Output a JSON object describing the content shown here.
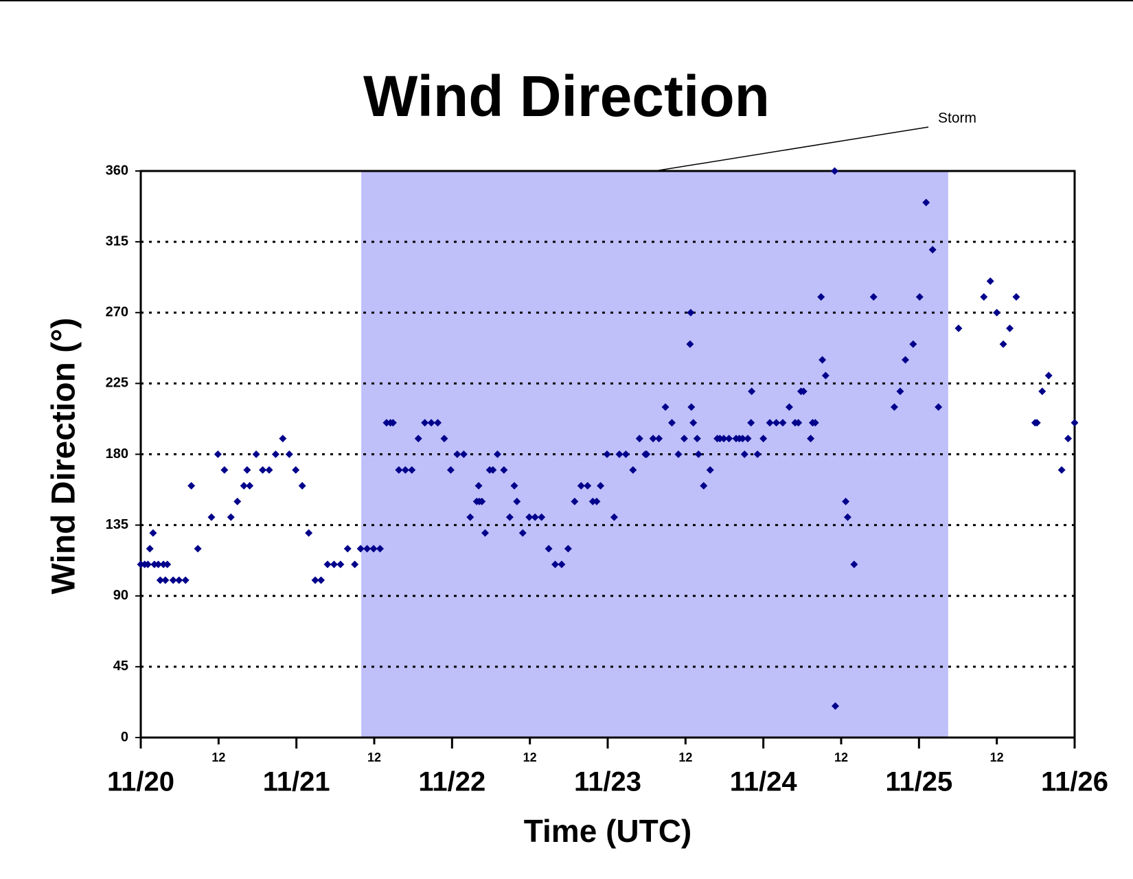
{
  "chart_data": {
    "type": "scatter",
    "title": "Wind Direction",
    "x_label": "Time (UTC)",
    "y_label": "Wind Direction (°)",
    "color": "#00008b",
    "shade_color": "#bfbffa",
    "grid": true,
    "storm": {
      "label": "Storm",
      "x": [
        34,
        124.5
      ]
    },
    "xlim": [
      0,
      144
    ],
    "xticks": [
      {
        "value": 0,
        "label": "11/20"
      },
      12,
      {
        "value": 24,
        "label": "11/21"
      },
      {
        "value": 36,
        "label": "12"
      },
      {
        "value": 48,
        "label": "11/22"
      },
      {
        "value": 60,
        "label": "12"
      },
      {
        "value": 72,
        "label": "11/23"
      },
      {
        "value": 84,
        "label": "12"
      },
      {
        "value": 96,
        "label": "11/24"
      },
      {
        "value": 108,
        "label": "12"
      },
      {
        "value": 120,
        "label": "11/25"
      },
      {
        "value": 132,
        "label": "12"
      },
      {
        "value": 144,
        "label": "11/26"
      }
    ],
    "ylim": [
      0,
      360
    ],
    "yticks": [
      0,
      45,
      90,
      135,
      180,
      225,
      270,
      315,
      360
    ],
    "x": [
      0,
      0.6,
      1.1,
      1.4,
      1.9,
      2.1,
      2.7,
      3.0,
      3.5,
      3.8,
      4.1,
      5.0,
      5.9,
      6.9,
      7.8,
      8.8,
      10.9,
      11.9,
      12.9,
      13.9,
      14.9,
      15.9,
      16.4,
      16.8,
      17.8,
      18.8,
      19.8,
      20.8,
      21.9,
      22.9,
      23.9,
      24.9,
      25.9,
      26.9,
      27.8,
      28.8,
      29.8,
      30.8,
      31.9,
      33.0,
      33.9,
      34.9,
      35.9,
      36.9,
      37.9,
      38.5,
      38.9,
      39.8,
      40.8,
      41.8,
      42.8,
      43.8,
      44.8,
      45.8,
      46.8,
      47.8,
      48.8,
      49.8,
      50.8,
      51.8,
      52.1,
      52.2,
      52.6,
      53.1,
      53.8,
      54.3,
      55.0,
      56.0,
      56.9,
      57.6,
      58.0,
      58.9,
      59.9,
      60.8,
      61.8,
      62.9,
      63.9,
      64.9,
      65.9,
      66.9,
      67.9,
      68.9,
      69.7,
      70.3,
      70.9,
      71.9,
      73.0,
      73.8,
      74.8,
      75.9,
      76.9,
      77.8,
      78.0,
      79.0,
      79.9,
      80.9,
      81.9,
      82.9,
      83.8,
      84.7,
      84.8,
      84.9,
      85.2,
      85.8,
      86.0,
      86.8,
      87.8,
      88.9,
      89.3,
      89.9,
      90.7,
      91.8,
      92.3,
      92.8,
      93.1,
      93.6,
      94.1,
      94.2,
      95.1,
      96.0,
      97.0,
      98.0,
      99.0,
      100.0,
      100.9,
      101.4,
      101.8,
      102.2,
      103.3,
      103.6,
      104.0,
      104.9,
      105.1,
      105.6,
      107.0,
      107.1,
      108.7,
      109.0,
      110.0,
      113.0,
      116.2,
      117.1,
      117.9,
      119.1,
      120.1,
      121.1,
      122.1,
      123.0,
      126.1,
      130.0,
      131.0,
      132.0,
      133.0,
      134.0,
      135.0,
      137.9,
      138.2,
      139.0,
      140.0,
      142.0,
      143.0,
      144.0
    ],
    "values": [
      110,
      110,
      110,
      120,
      130,
      110,
      110,
      100,
      110,
      100,
      110,
      100,
      100,
      100,
      160,
      120,
      140,
      180,
      170,
      140,
      150,
      160,
      170,
      160,
      180,
      170,
      170,
      180,
      190,
      180,
      170,
      160,
      130,
      100,
      100,
      110,
      110,
      110,
      120,
      110,
      120,
      120,
      120,
      120,
      200,
      200,
      200,
      170,
      170,
      170,
      190,
      200,
      200,
      200,
      190,
      170,
      180,
      180,
      140,
      150,
      160,
      150,
      150,
      130,
      170,
      170,
      180,
      170,
      140,
      160,
      150,
      130,
      140,
      140,
      140,
      120,
      110,
      110,
      120,
      150,
      160,
      160,
      150,
      150,
      160,
      180,
      140,
      180,
      180,
      170,
      190,
      180,
      180,
      190,
      190,
      210,
      200,
      180,
      190,
      250,
      270,
      210,
      200,
      190,
      180,
      160,
      170,
      190,
      190,
      190,
      190,
      190,
      190,
      190,
      180,
      190,
      200,
      220,
      180,
      190,
      200,
      200,
      200,
      210,
      200,
      200,
      220,
      220,
      190,
      200,
      200,
      280,
      240,
      230,
      360,
      20,
      150,
      140,
      110,
      280,
      210,
      220,
      240,
      250,
      280,
      340,
      310,
      210,
      260,
      280,
      290,
      270,
      250,
      260,
      280,
      200,
      200,
      220,
      230,
      170,
      190,
      200
    ]
  }
}
